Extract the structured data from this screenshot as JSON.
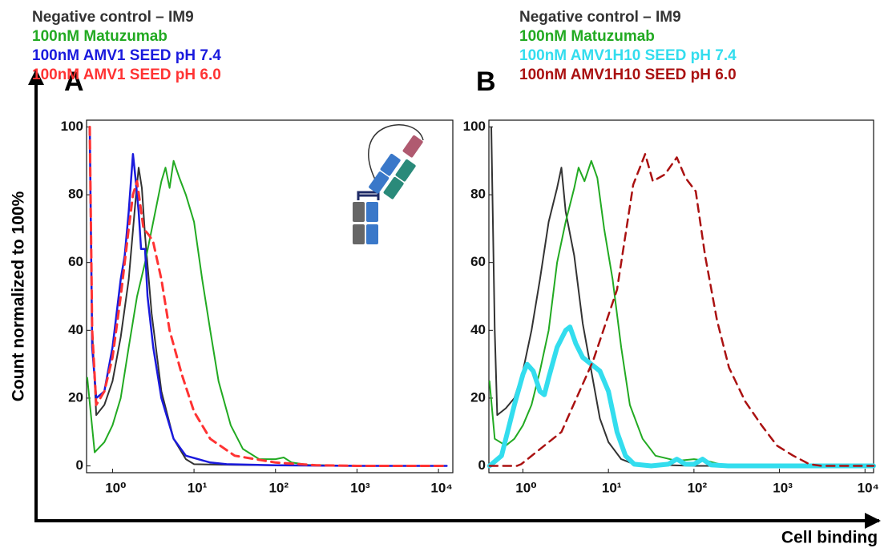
{
  "axis_labels": {
    "y": "Count normalized to 100%",
    "x": "Cell binding"
  },
  "chart_data": [
    {
      "type": "line",
      "panel": "A",
      "xscale": "log",
      "xlim": [
        0.48,
        15000
      ],
      "ylim": [
        -2,
        102
      ],
      "xticks": [
        {
          "value": 1,
          "label": "10⁰"
        },
        {
          "value": 10,
          "label": "10¹"
        },
        {
          "value": 100,
          "label": "10²"
        },
        {
          "value": 1000,
          "label": "10³"
        },
        {
          "value": 10000,
          "label": "10⁴"
        }
      ],
      "yticks": [
        0,
        20,
        40,
        60,
        80,
        100
      ],
      "series": [
        {
          "name": "Negative control – IM9",
          "color": "#333333",
          "dashed": false,
          "width": 2,
          "x": [
            0.525,
            0.562,
            0.631,
            0.794,
            1,
            1.26,
            1.58,
            1.91,
            2.09,
            2.29,
            2.51,
            3.02,
            3.98,
            5.62,
            7.94,
            10,
            31.6,
            100,
            1000,
            12600
          ],
          "values": [
            100,
            40,
            15,
            18,
            25,
            38,
            55,
            78,
            88,
            82,
            68,
            45,
            22,
            8,
            2,
            0.5,
            0.3,
            0.2,
            0,
            0
          ]
        },
        {
          "name": "100nM Matuzumab",
          "color": "#22aa22",
          "dashed": false,
          "width": 2,
          "x": [
            0.49,
            0.603,
            0.794,
            1,
            1.26,
            1.58,
            2.0,
            2.51,
            3.16,
            3.98,
            4.47,
            5.01,
            5.62,
            6.61,
            7.94,
            10,
            12.6,
            15.8,
            20,
            28.2,
            39.8,
            63.1,
            100,
            126,
            158,
            251,
            1000,
            12600
          ],
          "values": [
            26,
            4,
            7,
            12,
            20,
            35,
            50,
            60,
            72,
            84,
            88,
            82,
            90,
            85,
            80,
            72,
            55,
            40,
            25,
            12,
            5,
            2,
            2,
            2.5,
            1,
            0.3,
            0,
            0
          ]
        },
        {
          "name": "100nM AMV1 SEED pH 7.4",
          "color": "#1a1add",
          "dashed": false,
          "width": 2.5,
          "x": [
            0.525,
            0.562,
            0.631,
            0.794,
            1,
            1.26,
            1.41,
            1.58,
            1.78,
            1.91,
            2.09,
            2.24,
            2.51,
            2.69,
            3.16,
            3.98,
            5.62,
            7.94,
            11.2,
            15.8,
            25.1,
            100,
            1000,
            12600
          ],
          "values": [
            100,
            35,
            20,
            22,
            35,
            55,
            62,
            75,
            92,
            85,
            75,
            64,
            64,
            50,
            35,
            20,
            8,
            3,
            2,
            1,
            0.5,
            0.2,
            0,
            0
          ]
        },
        {
          "name": "100nM AMV1 SEED pH 6.0",
          "color": "#ff3333",
          "dashed": true,
          "width": 3,
          "x": [
            0.525,
            0.562,
            0.631,
            0.794,
            1,
            1.26,
            1.58,
            1.78,
            2.0,
            2.4,
            2.82,
            3.16,
            3.98,
            5.01,
            7.08,
            10,
            15.8,
            31.6,
            100,
            316,
            1000,
            12600
          ],
          "values": [
            100,
            40,
            18,
            22,
            32,
            50,
            70,
            80,
            84,
            70,
            68,
            66,
            55,
            40,
            27,
            16,
            8,
            3,
            1,
            0.2,
            0,
            0
          ]
        }
      ]
    },
    {
      "type": "line",
      "panel": "B",
      "xscale": "log",
      "xlim": [
        0.4,
        12600
      ],
      "ylim": [
        -2,
        102
      ],
      "xticks": [
        {
          "value": 1,
          "label": "10⁰"
        },
        {
          "value": 10,
          "label": "10¹"
        },
        {
          "value": 100,
          "label": "10²"
        },
        {
          "value": 1000,
          "label": "10³"
        },
        {
          "value": 10000,
          "label": "10⁴"
        }
      ],
      "yticks": [
        0,
        20,
        40,
        60,
        80,
        100
      ],
      "series": [
        {
          "name": "Negative control – IM9",
          "color": "#333333",
          "dashed": false,
          "width": 2,
          "x": [
            0.427,
            0.468,
            0.501,
            0.631,
            0.794,
            1,
            1.26,
            1.58,
            2.0,
            2.51,
            2.82,
            3.16,
            3.98,
            5.01,
            6.31,
            7.94,
            10,
            14.1,
            20,
            100,
            1000,
            12600
          ],
          "values": [
            100,
            40,
            15,
            17,
            20,
            28,
            40,
            55,
            72,
            82,
            88,
            75,
            62,
            42,
            28,
            14,
            7,
            2,
            0.5,
            0,
            0,
            0
          ]
        },
        {
          "name": "100nM Matuzumab",
          "color": "#22aa22",
          "dashed": false,
          "width": 2,
          "x": [
            0.407,
            0.468,
            0.631,
            0.794,
            1,
            1.26,
            1.58,
            2.0,
            2.51,
            3.16,
            3.98,
            4.47,
            5.25,
            6.31,
            7.41,
            8.91,
            11.2,
            14.1,
            17.8,
            25.1,
            35.5,
            63.1,
            100,
            141,
            200,
            1000,
            12600
          ],
          "values": [
            25,
            8,
            6,
            8,
            12,
            18,
            28,
            40,
            60,
            72,
            82,
            88,
            84,
            90,
            85,
            70,
            55,
            35,
            18,
            8,
            3,
            1.5,
            2,
            1.5,
            0.5,
            0,
            0
          ]
        },
        {
          "name": "100nM AMV1H10 SEED pH 7.4",
          "color": "#33ddee",
          "dashed": false,
          "width": 6,
          "x": [
            0.407,
            0.562,
            0.794,
            1,
            1.12,
            1.32,
            1.58,
            1.78,
            2.0,
            2.51,
            3.16,
            3.55,
            4.17,
            5.01,
            6.31,
            7.94,
            10,
            12.6,
            15.8,
            20,
            31.6,
            50.1,
            63.1,
            79.4,
            100,
            126,
            158,
            251,
            12600
          ],
          "values": [
            0,
            3,
            18,
            27,
            30,
            28,
            22,
            21,
            26,
            35,
            40,
            41,
            36,
            32,
            30,
            28,
            22,
            10,
            3,
            0.5,
            0,
            0.5,
            2,
            0.5,
            0.5,
            2,
            0.3,
            0,
            0
          ]
        },
        {
          "name": "100nM AMV1H10 SEED pH 6.0",
          "color": "#aa1111",
          "dashed": true,
          "width": 2.5,
          "x": [
            0.407,
            0.851,
            0.955,
            2.82,
            6.61,
            12.6,
            19.5,
            26.9,
            33.1,
            45.7,
            63.1,
            79.4,
            105,
            135,
            186,
            257,
            398,
            617,
            933,
            1450,
            2240,
            3090,
            12600
          ],
          "values": [
            0,
            0,
            0.5,
            10,
            31,
            52,
            83,
            92,
            84,
            86,
            91,
            85,
            81,
            62,
            43,
            29,
            19,
            12,
            6,
            3,
            0.5,
            0,
            0
          ]
        }
      ]
    }
  ]
}
